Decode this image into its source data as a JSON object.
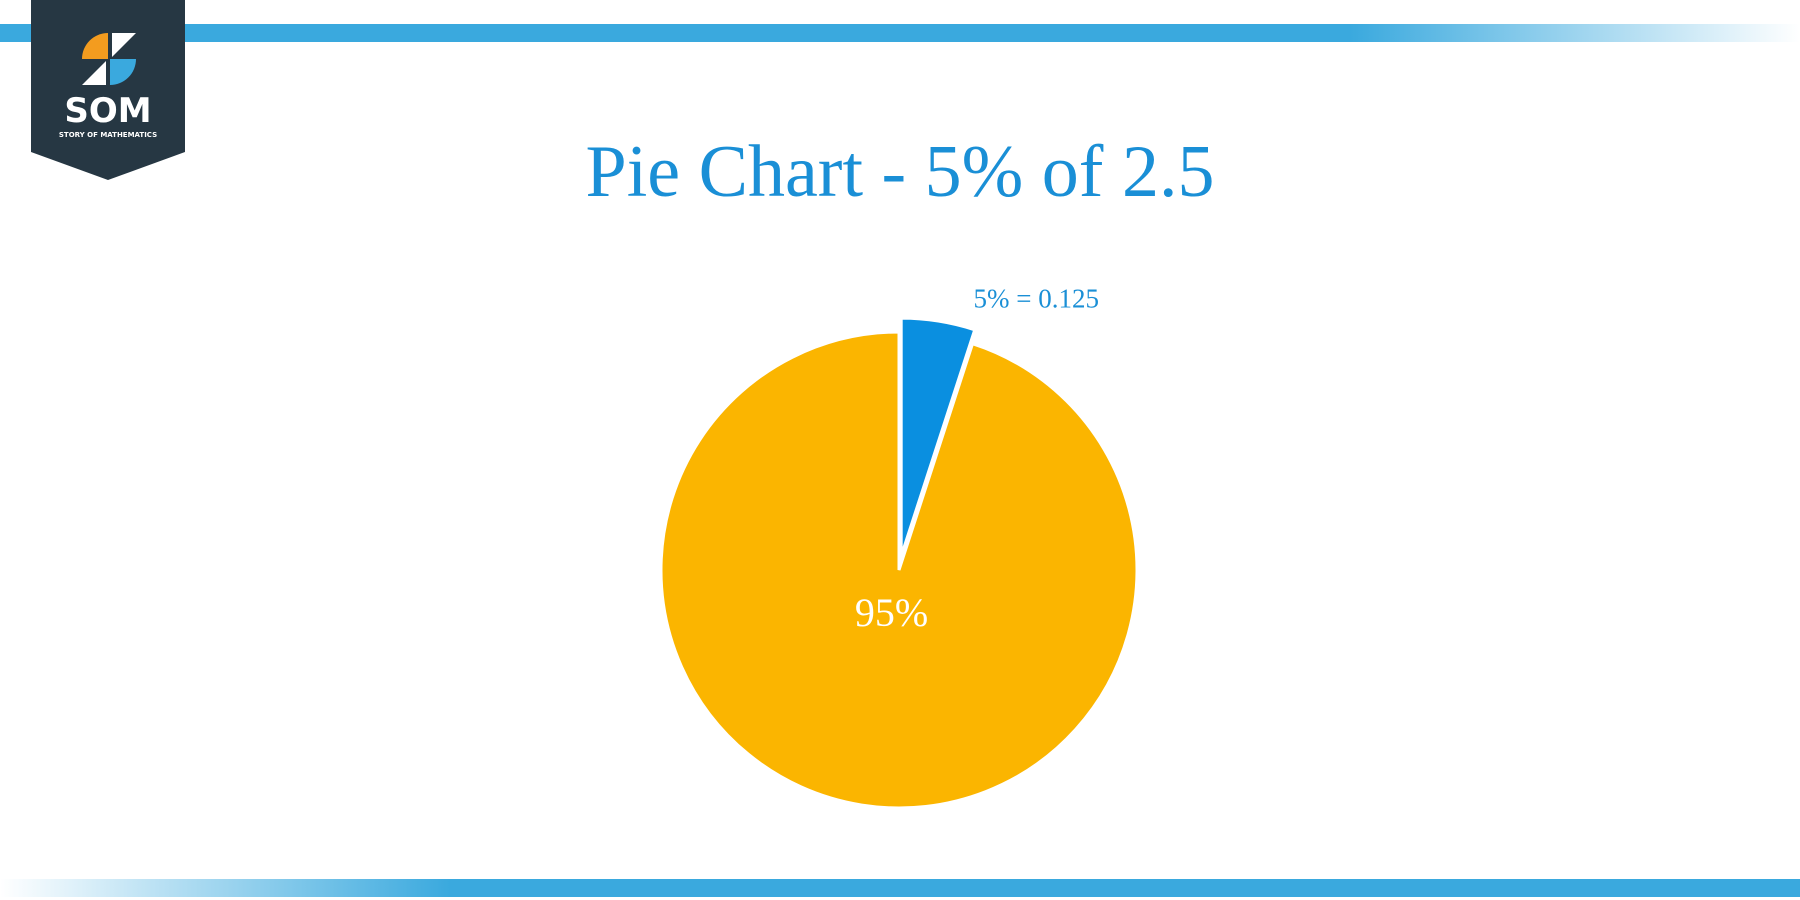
{
  "logo": {
    "title": "SOM",
    "subtitle": "STORY OF MATHEMATICS"
  },
  "chart_data": {
    "type": "pie",
    "title": "Pie Chart - 5% of 2.5",
    "values": [
      5,
      95
    ],
    "value_labels": [
      "5% = 0.125",
      "95%"
    ],
    "colors": [
      "#0a8fe0",
      "#fbb500"
    ],
    "exploded": [
      true,
      false
    ]
  }
}
